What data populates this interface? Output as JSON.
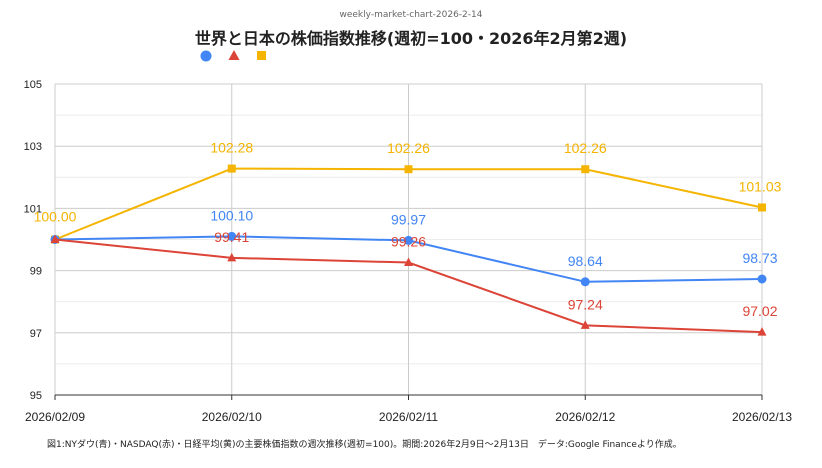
{
  "header_note": "weekly-market-chart-2026-2-14",
  "caption": "図1:NYダウ(青)・NASDAQ(赤)・日経平均(黄)の主要株価指数の週次推移(週初=100)。期間:2026年2月9日〜2月13日　データ:Google Financeより作成。",
  "colors": {
    "blue": "#4285f4",
    "red": "#db4437",
    "yellow": "#f4b400",
    "grid": "#d9d9d9",
    "axis": "#333333"
  },
  "chart_data": {
    "type": "line",
    "title": "世界と日本の株価指数推移(週初=100・2026年2月第2週)",
    "categories": [
      "2026/02/09",
      "2026/02/10",
      "2026/02/11",
      "2026/02/12",
      "2026/02/13"
    ],
    "ylim": [
      95,
      105
    ],
    "yticks": [
      "95",
      "97",
      "99",
      "101",
      "103",
      "105"
    ],
    "grid": true,
    "legend_placement": "top-left",
    "series": [
      {
        "color": "#f4b400",
        "marker": "square",
        "values": [
          100.0,
          102.28,
          102.26,
          102.26,
          101.03
        ],
        "labels": [
          "100.00",
          "102.28",
          "102.26",
          "102.26",
          "101.03"
        ]
      },
      {
        "color": "#4285f4",
        "marker": "circle",
        "values": [
          100.0,
          100.1,
          99.97,
          98.64,
          98.73
        ],
        "labels": [
          "",
          "100.10",
          "99.97",
          "98.64",
          "98.73"
        ]
      },
      {
        "color": "#db4437",
        "marker": "triangle",
        "values": [
          100.0,
          99.41,
          99.26,
          97.24,
          97.02
        ],
        "labels": [
          "",
          "99.41",
          "99.26",
          "97.24",
          "97.02"
        ]
      }
    ]
  }
}
